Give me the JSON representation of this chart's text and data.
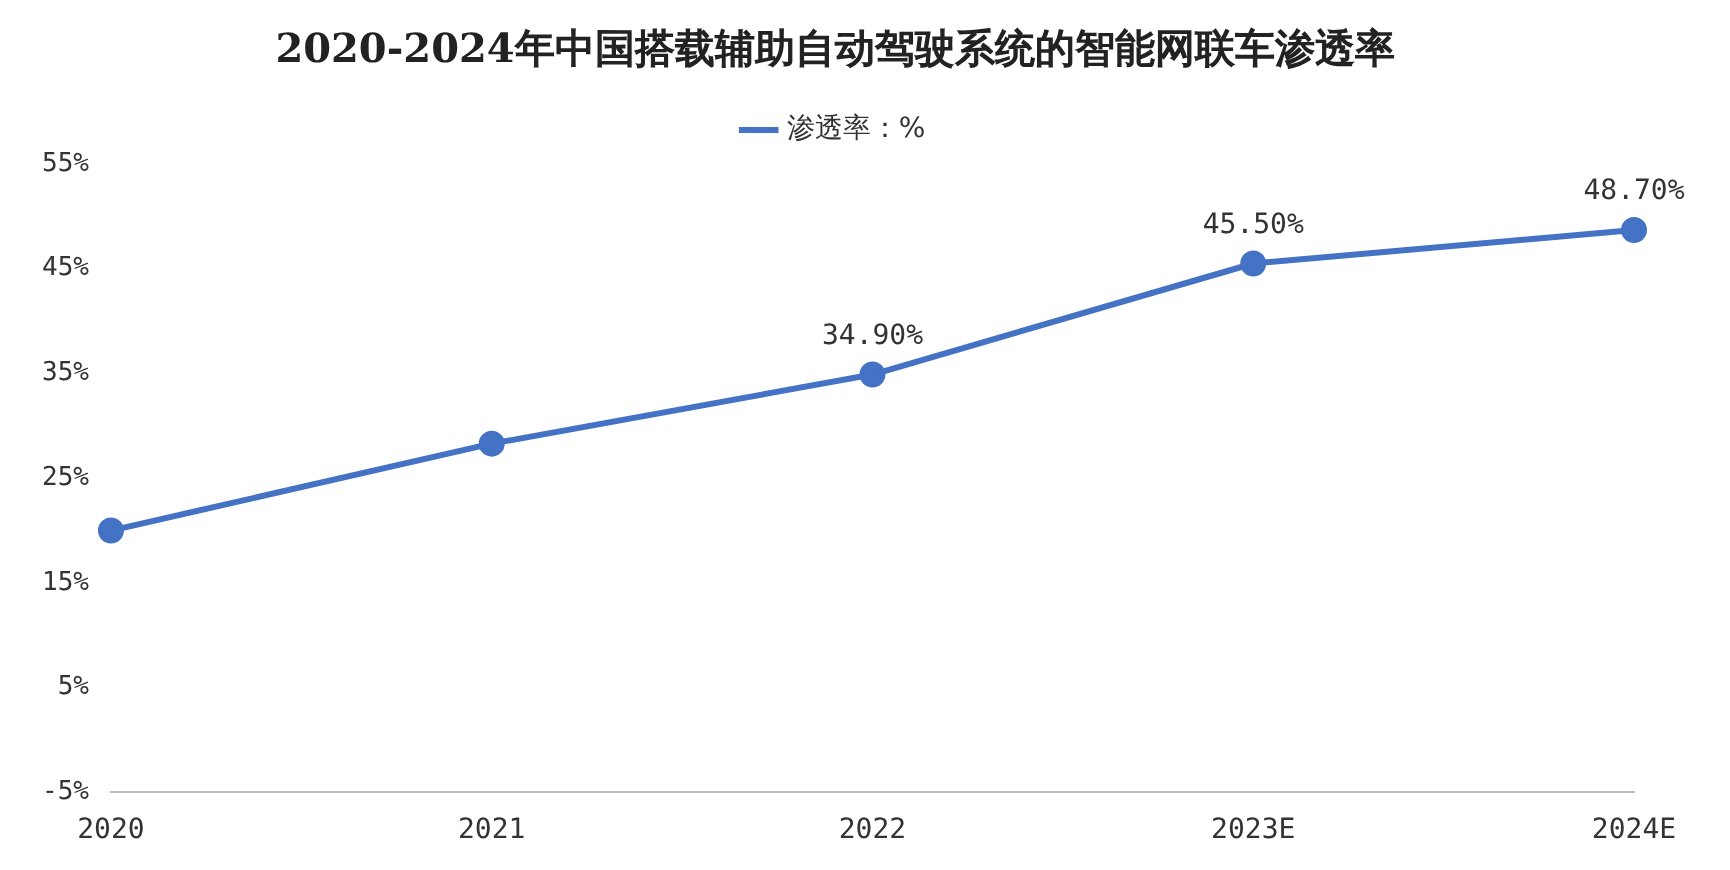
{
  "chart_data": {
    "type": "line",
    "title": "2020-2024年中国搭载辅助自动驾驶系统的智能网联车渗透率",
    "categories": [
      "2020",
      "2021",
      "2022",
      "2023E",
      "2024E"
    ],
    "series": [
      {
        "name": "渗透率：%",
        "color": "#4472c4",
        "values": [
          20,
          28.3,
          34.9,
          45.5,
          48.7
        ],
        "value_labels": [
          null,
          null,
          "34.90%",
          "45.50%",
          "48.70%"
        ]
      }
    ],
    "ylim": [
      -5,
      55
    ],
    "yticks": [
      {
        "value": -5,
        "label": "-5%"
      },
      {
        "value": 5,
        "label": "5%"
      },
      {
        "value": 15,
        "label": "15%"
      },
      {
        "value": 25,
        "label": "25%"
      },
      {
        "value": 35,
        "label": "35%"
      },
      {
        "value": 45,
        "label": "45%"
      },
      {
        "value": 55,
        "label": "55%"
      }
    ],
    "grid": false,
    "legend": "top",
    "marker": "circle",
    "line_style": "solid"
  }
}
